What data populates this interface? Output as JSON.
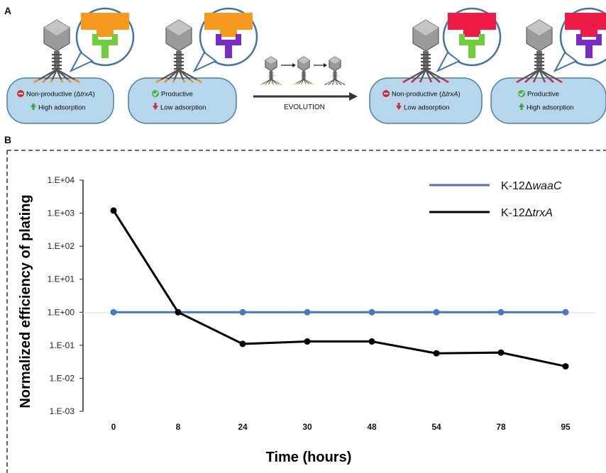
{
  "panel_a": {
    "letter": "A",
    "evolution_label": "EVOLUTION",
    "cells": [
      {
        "line1_pre": "Non-productive (",
        "line1_sym": "Δ",
        "line1_gene": "trxA",
        "line1_post": ")",
        "line2": "High adsorption",
        "status": "nonproductive",
        "arrow": "up",
        "tip_color": "#f2931c",
        "receptor_color": "#6fcf3a",
        "bulb_color": "#f59a1e"
      },
      {
        "line1_pre": "Productive",
        "line1_sym": "",
        "line1_gene": "",
        "line1_post": "",
        "line2": "Low adsorption",
        "status": "productive",
        "arrow": "down",
        "tip_color": "#f2931c",
        "receptor_color": "#7a2bc7",
        "bulb_color": "#f59a1e"
      },
      {
        "line1_pre": "Non-productive (",
        "line1_sym": "Δ",
        "line1_gene": "trxA",
        "line1_post": ")",
        "line2": "Low adsorption",
        "status": "nonproductive",
        "arrow": "down",
        "tip_color": "#e8234a",
        "receptor_color": "#6fcf3a",
        "bulb_color": "#ee1b46"
      },
      {
        "line1_pre": "Productive",
        "line1_sym": "",
        "line1_gene": "",
        "line1_post": "",
        "line2": "High adsorption",
        "status": "productive",
        "arrow": "up",
        "tip_color": "#e8234a",
        "receptor_color": "#7a2bc7",
        "bulb_color": "#ee1b46"
      }
    ],
    "evolution_tips": [
      "#f2931c",
      "#f5e11c",
      "#e8234a"
    ]
  },
  "panel_b": {
    "letter": "B"
  },
  "chart_data": {
    "type": "line",
    "xlabel": "Time (hours)",
    "ylabel": "Normalized efficiency of plating",
    "categories": [
      "0",
      "8",
      "24",
      "30",
      "48",
      "54",
      "78",
      "95"
    ],
    "yscale": "log",
    "ylim": [
      0.001,
      10000
    ],
    "yticks": [
      "1.E-03",
      "1.E-02",
      "1.E-01",
      "1.E+00",
      "1.E+01",
      "1.E+02",
      "1.E+03",
      "1.E+04"
    ],
    "legend_position": "top-right",
    "series": [
      {
        "name_prefix": "K-12Δ",
        "name_gene": "waaC",
        "color": "#4a77c4",
        "values": [
          1,
          1,
          1,
          1,
          1,
          1,
          1,
          1
        ]
      },
      {
        "name_prefix": "K-12Δ",
        "name_gene": "trxA",
        "color": "#000000",
        "values": [
          1200,
          1.0,
          0.11,
          0.13,
          0.13,
          0.057,
          0.06,
          0.023
        ]
      }
    ]
  }
}
